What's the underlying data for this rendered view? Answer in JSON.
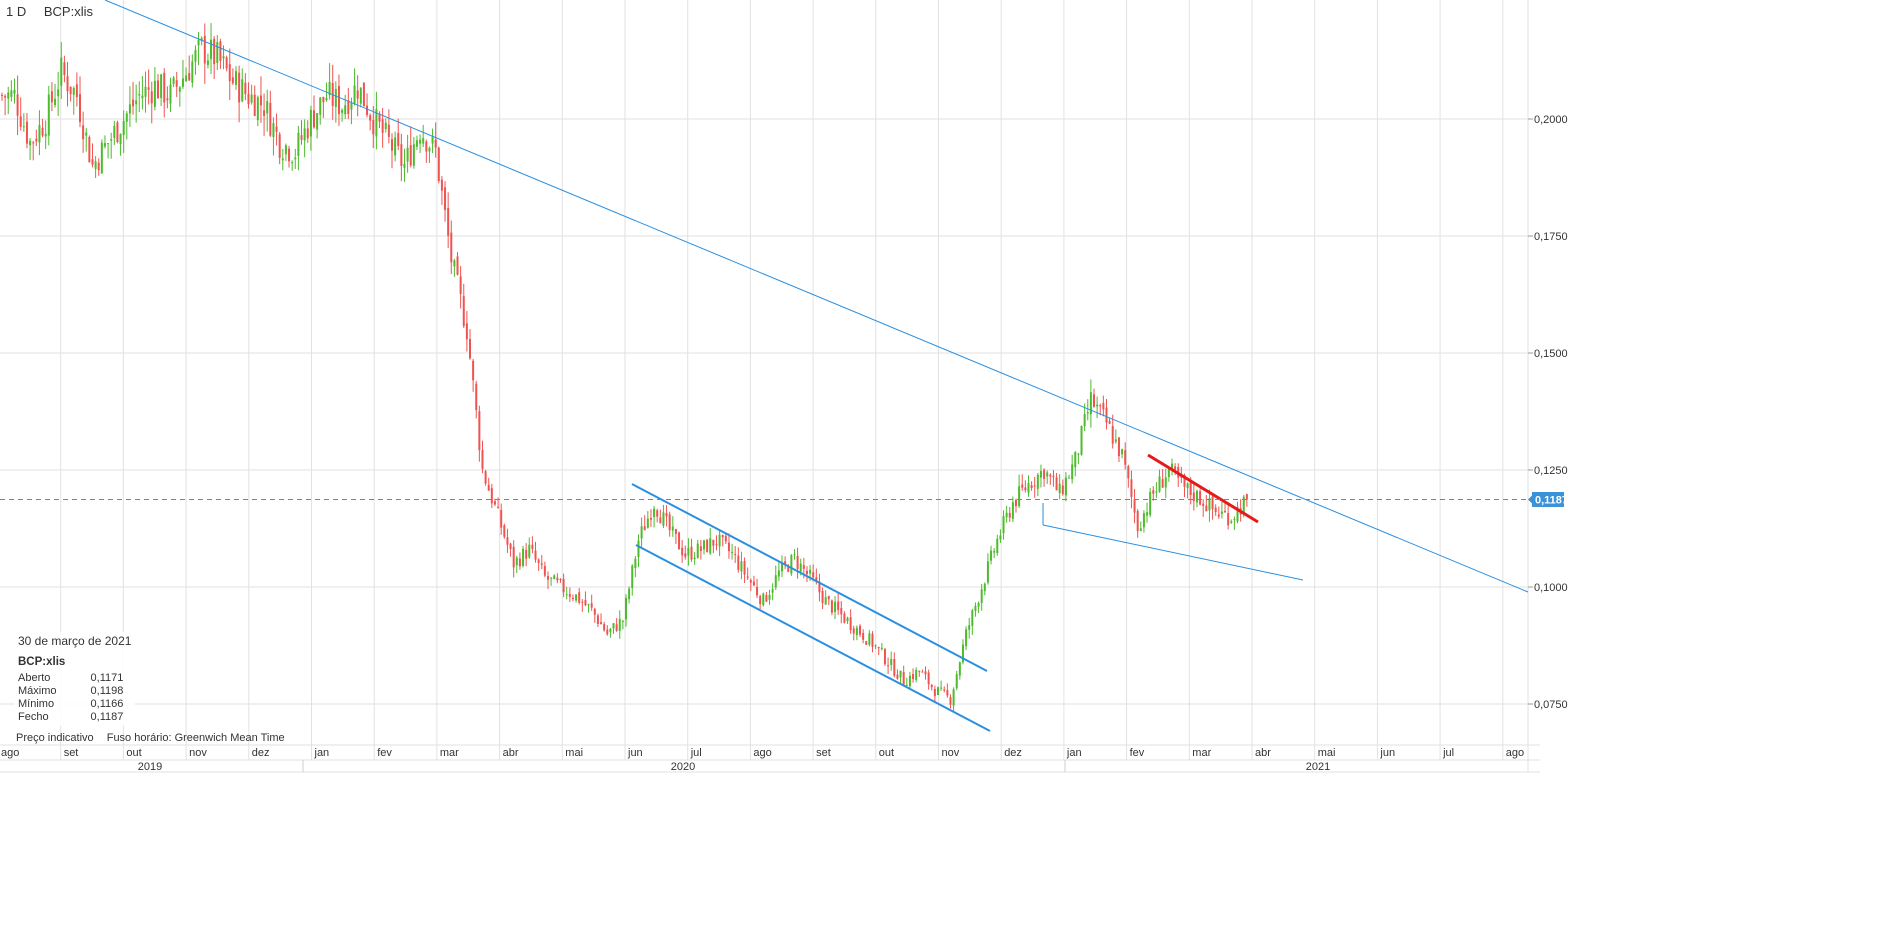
{
  "header": {
    "interval": "1 D",
    "symbol": "BCP:xlis"
  },
  "info": {
    "date": "30 de março de 2021",
    "symbol": "BCP:xlis",
    "rows": [
      {
        "label": "Aberto",
        "value": "0,1171"
      },
      {
        "label": "Máximo",
        "value": "0,1198"
      },
      {
        "label": "Mínimo",
        "value": "0,1166"
      },
      {
        "label": "Fecho",
        "value": "0,1187"
      }
    ],
    "note": "Preço indicativo",
    "timezone": "Fuso horário: Greenwich Mean Time"
  },
  "chart_data": {
    "type": "candlestick",
    "symbol": "BCP:xlis",
    "interval": "1 D",
    "y_ticks": [
      "0,2000",
      "0,1750",
      "0,1500",
      "0,1250",
      "0,1000",
      "0,0750"
    ],
    "y_tick_values": [
      0.2,
      0.175,
      0.15,
      0.125,
      0.1,
      0.075
    ],
    "x_month_labels": [
      "ago",
      "set",
      "out",
      "nov",
      "dez",
      "jan",
      "fev",
      "mar",
      "abr",
      "mai",
      "jun",
      "jul",
      "ago",
      "set",
      "out",
      "nov",
      "dez",
      "jan",
      "fev",
      "mar",
      "abr",
      "mai",
      "jun",
      "jul",
      "ago"
    ],
    "x_year_labels": [
      "2019",
      "2020",
      "2021"
    ],
    "last_price": 0.1187,
    "last_price_label": "0,1187",
    "weekly_closes_approx": {
      "start": "2019-08",
      "values": [
        0.205,
        0.195,
        0.2,
        0.21,
        0.205,
        0.19,
        0.195,
        0.2,
        0.205,
        0.207,
        0.205,
        0.21,
        0.215,
        0.213,
        0.208,
        0.205,
        0.203,
        0.195,
        0.193,
        0.2,
        0.205,
        0.203,
        0.207,
        0.2,
        0.195,
        0.19,
        0.198,
        0.193,
        0.17,
        0.155,
        0.125,
        0.115,
        0.105,
        0.108,
        0.102,
        0.1,
        0.098,
        0.095,
        0.09,
        0.093,
        0.11,
        0.118,
        0.112,
        0.107,
        0.108,
        0.11,
        0.107,
        0.102,
        0.097,
        0.103,
        0.106,
        0.102,
        0.097,
        0.094,
        0.091,
        0.088,
        0.084,
        0.08,
        0.082,
        0.078,
        0.076,
        0.09,
        0.1,
        0.11,
        0.118,
        0.122,
        0.125,
        0.12,
        0.127,
        0.14,
        0.135,
        0.128,
        0.113,
        0.12,
        0.125,
        0.121,
        0.119,
        0.116,
        0.115,
        0.1187
      ]
    },
    "colors": {
      "up": "#4cbb2c",
      "down": "#ef5350",
      "trendline": "#2a8fe0",
      "highlight_trendline": "#e51b1b",
      "last_price_line": "#ef5350",
      "grid": "#e2e2e2",
      "price_badge": "#3b92d9"
    },
    "grid": true
  }
}
